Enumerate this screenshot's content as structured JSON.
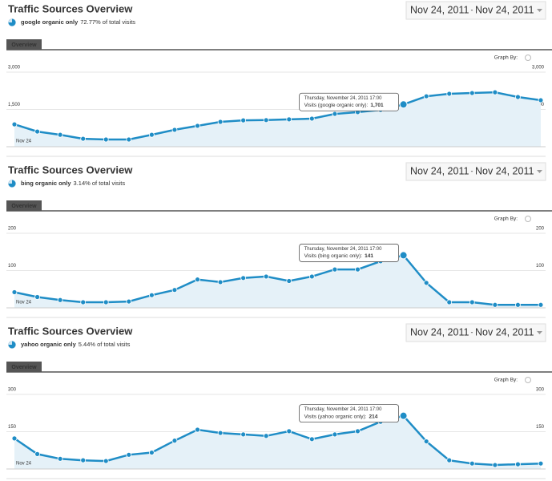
{
  "chart_data": [
    {
      "type": "line",
      "title": "Traffic Sources Overview",
      "segment": "google organic only",
      "segment_note": "72.77% of total visits",
      "date_range": [
        "Nov 24, 2011",
        "Nov 24, 2011"
      ],
      "date_separator": "-",
      "tab": "Overview",
      "graph_by": "Graph By:",
      "x_label": "Nov 24",
      "color": "#1f8dc6",
      "grid": true,
      "values": [
        900,
        610,
        480,
        320,
        290,
        290,
        480,
        680,
        840,
        1000,
        1060,
        1070,
        1100,
        1130,
        1320,
        1390,
        1480,
        1701,
        2030,
        2130,
        2160,
        2190,
        2000,
        1870
      ],
      "ylim": [
        0,
        3000
      ],
      "yticks": [
        {
          "value": 1500,
          "label": "1,500"
        },
        {
          "value": 3000,
          "label": "3,000"
        }
      ],
      "tooltip": {
        "date": "Thursday, November 24, 2011 17:00",
        "label": "Visits (google organic only):",
        "value": 1701,
        "value_label": "1,701"
      }
    },
    {
      "type": "line",
      "title": "Traffic Sources Overview",
      "segment": "bing organic only",
      "segment_note": "3.14% of total visits",
      "date_range": [
        "Nov 24, 2011",
        "Nov 24, 2011"
      ],
      "date_separator": "-",
      "tab": "Overview",
      "graph_by": "Graph By:",
      "x_label": "Nov 24",
      "color": "#1f8dc6",
      "grid": true,
      "values": [
        42,
        29,
        21,
        15,
        15,
        17,
        34,
        48,
        76,
        69,
        80,
        84,
        72,
        84,
        103,
        103,
        125,
        141,
        67,
        15,
        15,
        8,
        8,
        8
      ],
      "ylim": [
        0,
        200
      ],
      "yticks": [
        100,
        200
      ],
      "tooltip": {
        "date": "Thursday, November 24, 2011 17:00",
        "label": "Visits (bing organic only):",
        "value": 141,
        "value_label": "141"
      }
    },
    {
      "type": "line",
      "title": "Traffic Sources Overview",
      "segment": "yahoo organic only",
      "segment_note": "5.44% of total visits",
      "date_range": [
        "Nov 24, 2011",
        "Nov 24, 2011"
      ],
      "date_separator": "-",
      "tab": "Overview",
      "graph_by": "Graph By:",
      "x_label": "Nov 24",
      "color": "#1f8dc6",
      "grid": true,
      "values": [
        123,
        60,
        41,
        35,
        32,
        57,
        66,
        114,
        158,
        145,
        139,
        133,
        152,
        120,
        139,
        152,
        190,
        214,
        111,
        35,
        22,
        16,
        19,
        22
      ],
      "ylim": [
        0,
        300
      ],
      "yticks": [
        150,
        300
      ],
      "tooltip": {
        "date": "Thursday, November 24, 2011 17:00",
        "label": "Visits (yahoo organic only):",
        "value": 214,
        "value_label": "214"
      }
    }
  ]
}
